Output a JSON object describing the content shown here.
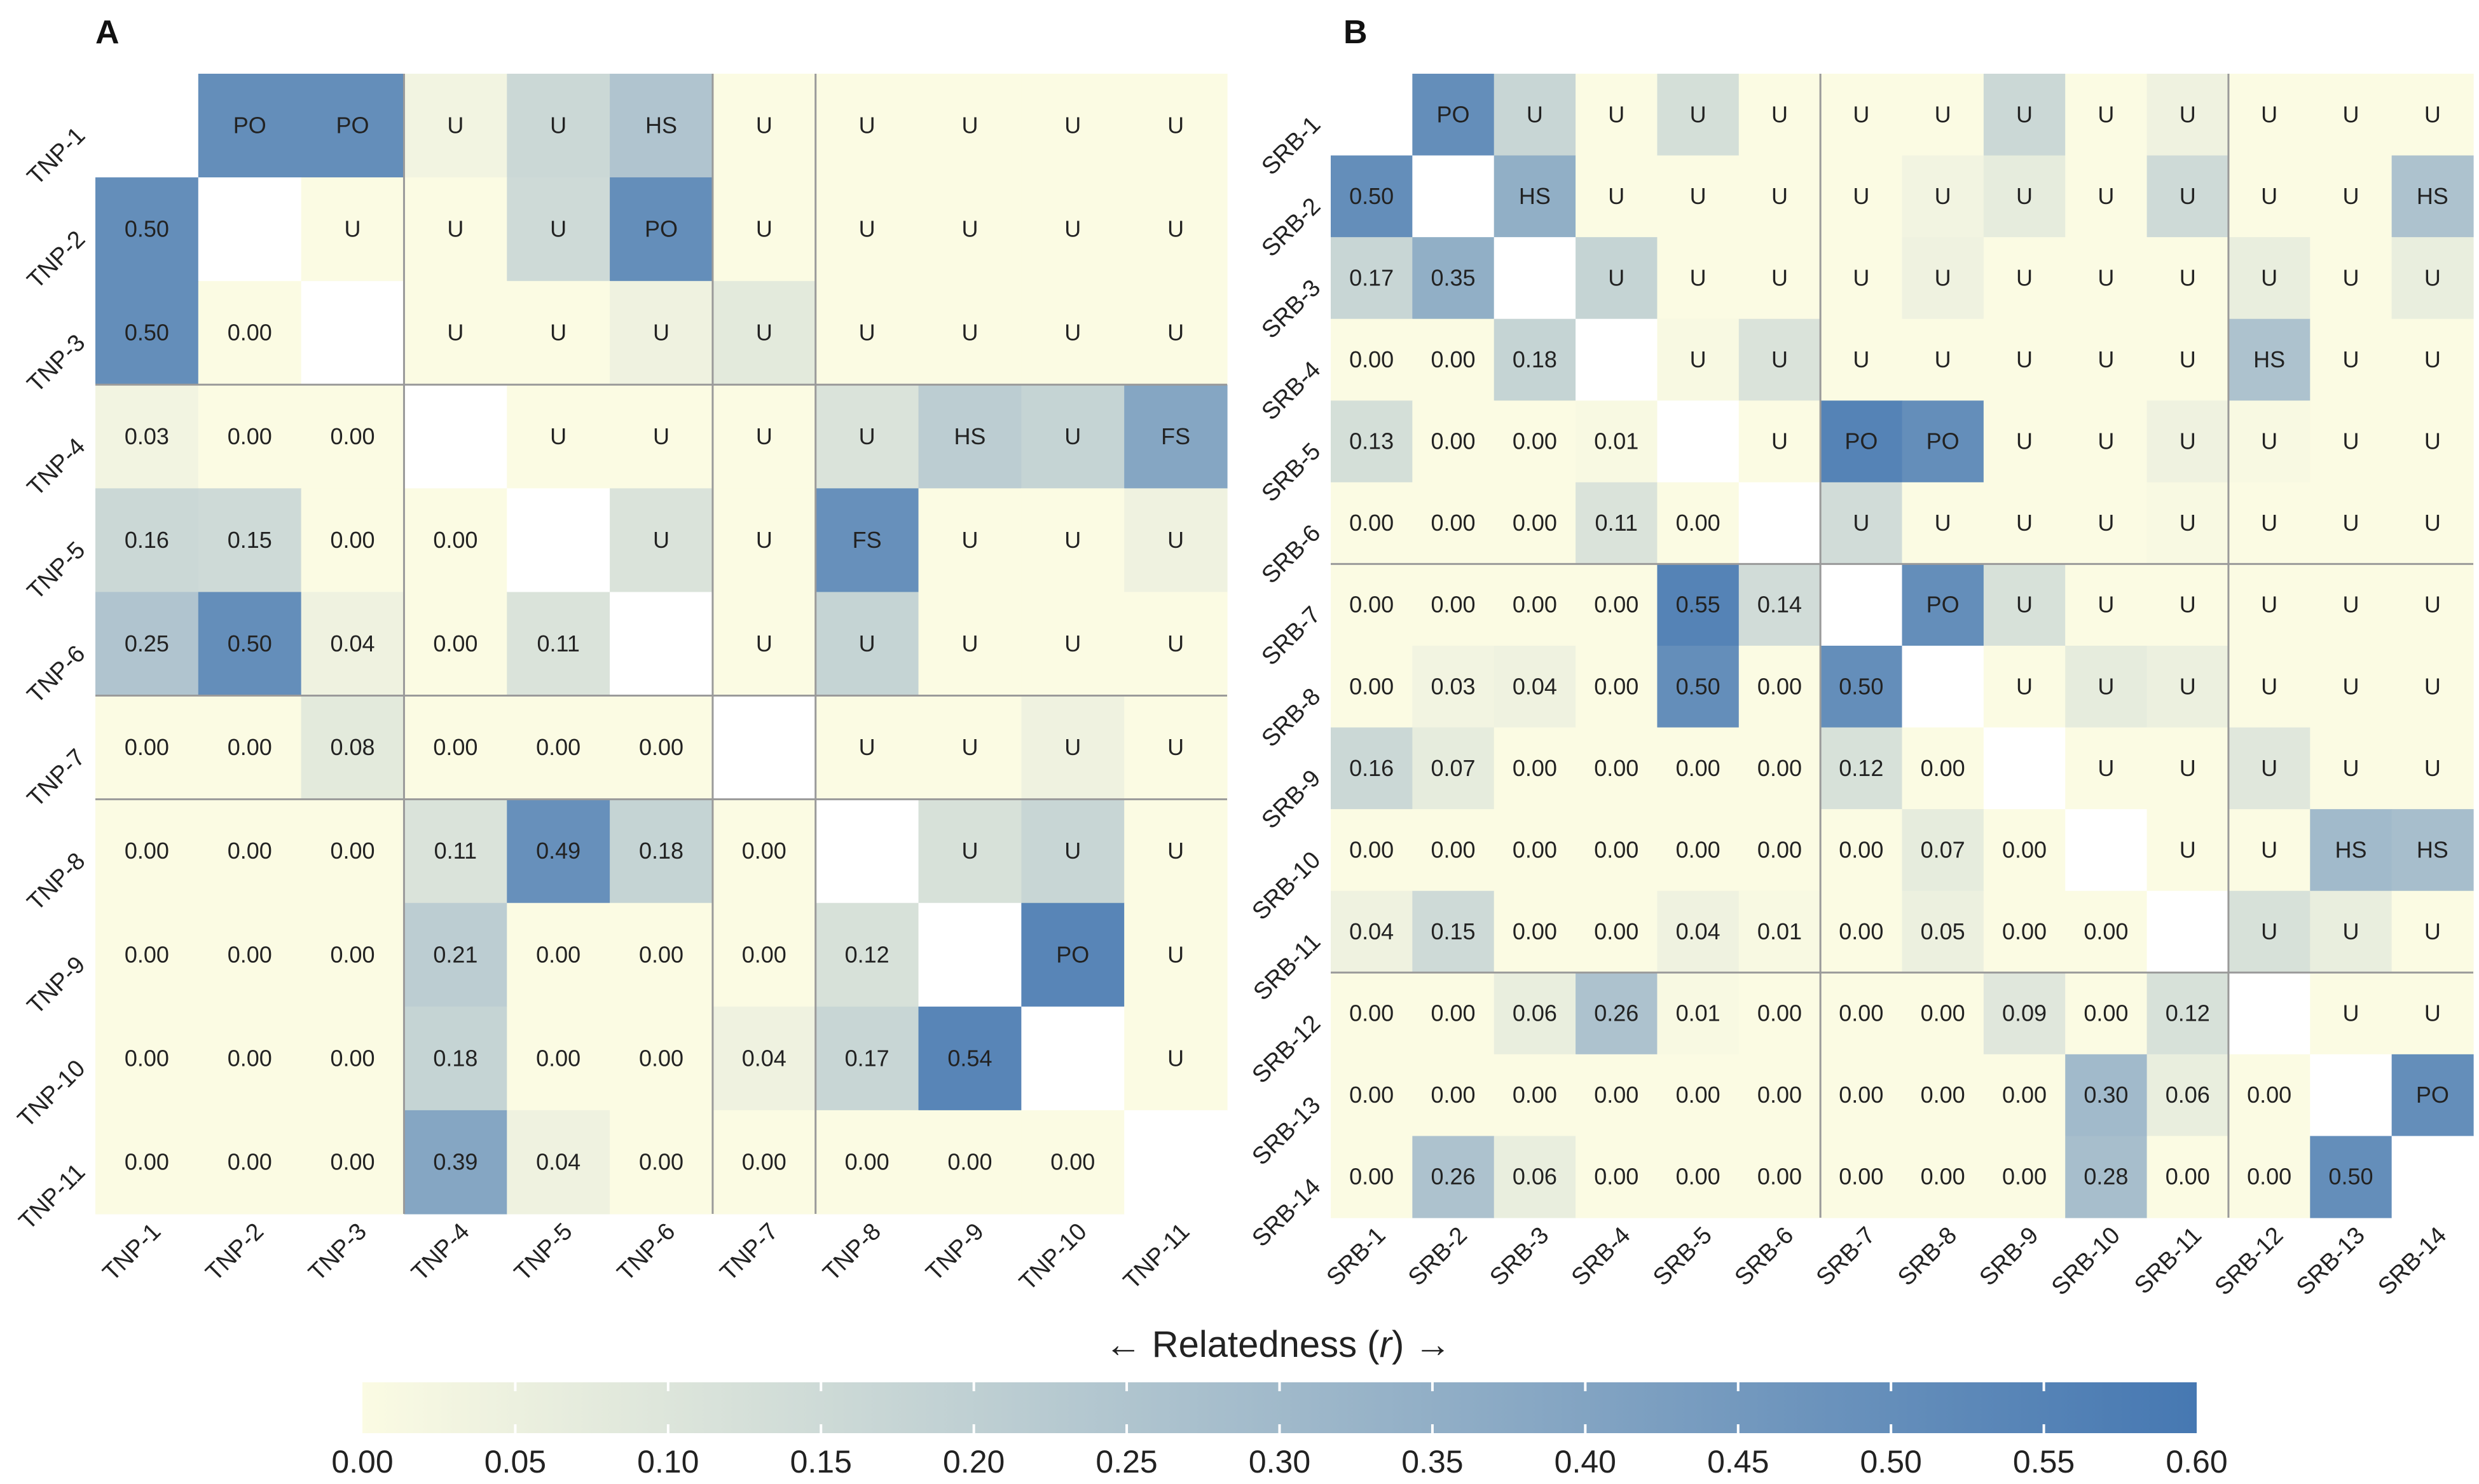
{
  "colors": {
    "low": "#fbfbe3",
    "high": "#4678b2",
    "grid": "#9a9a9a",
    "diagonal": "#ffffff"
  },
  "chart_data": [
    {
      "type": "heatmap",
      "panel": "A",
      "labels": [
        "TNP-1",
        "TNP-2",
        "TNP-3",
        "TNP-4",
        "TNP-5",
        "TNP-6",
        "TNP-7",
        "TNP-8",
        "TNP-9",
        "TNP-10",
        "TNP-11"
      ],
      "group_breaks_after": [
        3,
        6,
        7
      ],
      "lower_values": [
        [
          null
        ],
        [
          0.5
        ],
        [
          0.5,
          0.0
        ],
        [
          0.03,
          0.0,
          0.0
        ],
        [
          0.16,
          0.15,
          0.0,
          0.0
        ],
        [
          0.25,
          0.5,
          0.04,
          0.0,
          0.11
        ],
        [
          0.0,
          0.0,
          0.08,
          0.0,
          0.0,
          0.0
        ],
        [
          0.0,
          0.0,
          0.0,
          0.11,
          0.49,
          0.18,
          0.0
        ],
        [
          0.0,
          0.0,
          0.0,
          0.21,
          0.0,
          0.0,
          0.0,
          0.12
        ],
        [
          0.0,
          0.0,
          0.0,
          0.18,
          0.0,
          0.0,
          0.04,
          0.17,
          0.54
        ],
        [
          0.0,
          0.0,
          0.0,
          0.39,
          0.04,
          0.0,
          0.0,
          0.0,
          0.0,
          0.0
        ]
      ],
      "upper_labels": [
        [],
        [
          "PO"
        ],
        [
          "PO",
          "U"
        ],
        [
          "U",
          "U",
          "U"
        ],
        [
          "U",
          "U",
          "U",
          "U"
        ],
        [
          "HS",
          "PO",
          "U",
          "U",
          "U"
        ],
        [
          "U",
          "U",
          "U",
          "U",
          "U",
          "U"
        ],
        [
          "U",
          "U",
          "U",
          "U",
          "FS",
          "U",
          "U"
        ],
        [
          "U",
          "U",
          "U",
          "HS",
          "U",
          "U",
          "U",
          "U"
        ],
        [
          "U",
          "U",
          "U",
          "U",
          "U",
          "U",
          "U",
          "U",
          "PO"
        ],
        [
          "U",
          "U",
          "U",
          "FS",
          "U",
          "U",
          "U",
          "U",
          "U",
          "U"
        ]
      ],
      "upper_shade": [
        [],
        [
          0.5
        ],
        [
          0.5,
          0.0
        ],
        [
          0.03,
          0.0,
          0.0
        ],
        [
          0.16,
          0.15,
          0.0,
          0.0
        ],
        [
          0.25,
          0.5,
          0.04,
          0.0,
          0.11
        ],
        [
          0.0,
          0.0,
          0.08,
          0.0,
          0.0,
          0.0
        ],
        [
          0.0,
          0.0,
          0.0,
          0.11,
          0.49,
          0.18,
          0.0
        ],
        [
          0.0,
          0.0,
          0.0,
          0.21,
          0.0,
          0.0,
          0.0,
          0.12
        ],
        [
          0.0,
          0.0,
          0.0,
          0.18,
          0.0,
          0.0,
          0.04,
          0.17,
          0.54
        ],
        [
          0.0,
          0.0,
          0.0,
          0.39,
          0.04,
          0.0,
          0.0,
          0.0,
          0.0,
          0.0
        ]
      ]
    },
    {
      "type": "heatmap",
      "panel": "B",
      "labels": [
        "SRB-1",
        "SRB-2",
        "SRB-3",
        "SRB-4",
        "SRB-5",
        "SRB-6",
        "SRB-7",
        "SRB-8",
        "SRB-9",
        "SRB-10",
        "SRB-11",
        "SRB-12",
        "SRB-13",
        "SRB-14"
      ],
      "group_breaks_after": [
        6,
        11
      ],
      "lower_values": [
        [],
        [
          0.5
        ],
        [
          0.17,
          0.35
        ],
        [
          0.0,
          0.0,
          0.18
        ],
        [
          0.13,
          0.0,
          0.0,
          0.01
        ],
        [
          0.0,
          0.0,
          0.0,
          0.11,
          0.0
        ],
        [
          0.0,
          0.0,
          0.0,
          0.0,
          0.55,
          0.14
        ],
        [
          0.0,
          0.03,
          0.04,
          0.0,
          0.5,
          0.0,
          0.5
        ],
        [
          0.16,
          0.07,
          0.0,
          0.0,
          0.0,
          0.0,
          0.12,
          0.0
        ],
        [
          0.0,
          0.0,
          0.0,
          0.0,
          0.0,
          0.0,
          0.0,
          0.07,
          0.0
        ],
        [
          0.04,
          0.15,
          0.0,
          0.0,
          0.04,
          0.01,
          0.0,
          0.05,
          0.0,
          0.0
        ],
        [
          0.0,
          0.0,
          0.06,
          0.26,
          0.01,
          0.0,
          0.0,
          0.0,
          0.09,
          0.0,
          0.12
        ],
        [
          0.0,
          0.0,
          0.0,
          0.0,
          0.0,
          0.0,
          0.0,
          0.0,
          0.0,
          0.3,
          0.06,
          0.0
        ],
        [
          0.0,
          0.26,
          0.06,
          0.0,
          0.0,
          0.0,
          0.0,
          0.0,
          0.0,
          0.28,
          0.0,
          0.0,
          0.5
        ]
      ],
      "upper_labels": [
        [],
        [
          "PO"
        ],
        [
          "U",
          "HS"
        ],
        [
          "U",
          "U",
          "U"
        ],
        [
          "U",
          "U",
          "U",
          "U"
        ],
        [
          "U",
          "U",
          "U",
          "U",
          "U"
        ],
        [
          "U",
          "U",
          "U",
          "U",
          "PO",
          "U"
        ],
        [
          "U",
          "U",
          "U",
          "U",
          "PO",
          "U",
          "PO"
        ],
        [
          "U",
          "U",
          "U",
          "U",
          "U",
          "U",
          "U",
          "U"
        ],
        [
          "U",
          "U",
          "U",
          "U",
          "U",
          "U",
          "U",
          "U",
          "U"
        ],
        [
          "U",
          "U",
          "U",
          "U",
          "U",
          "U",
          "U",
          "U",
          "U",
          "U"
        ],
        [
          "U",
          "U",
          "U",
          "HS",
          "U",
          "U",
          "U",
          "U",
          "U",
          "U",
          "U"
        ],
        [
          "U",
          "U",
          "U",
          "U",
          "U",
          "U",
          "U",
          "U",
          "U",
          "HS",
          "U",
          "U"
        ],
        [
          "U",
          "HS",
          "U",
          "U",
          "U",
          "U",
          "U",
          "U",
          "U",
          "HS",
          "U",
          "U",
          "PO"
        ]
      ],
      "upper_shade": [
        [],
        [
          0.5
        ],
        [
          0.17,
          0.35
        ],
        [
          0.0,
          0.0,
          0.18
        ],
        [
          0.13,
          0.0,
          0.0,
          0.01
        ],
        [
          0.0,
          0.0,
          0.0,
          0.11,
          0.0
        ],
        [
          0.0,
          0.0,
          0.0,
          0.0,
          0.55,
          0.14
        ],
        [
          0.0,
          0.03,
          0.04,
          0.0,
          0.5,
          0.0,
          0.5
        ],
        [
          0.16,
          0.07,
          0.0,
          0.0,
          0.0,
          0.0,
          0.12,
          0.0
        ],
        [
          0.0,
          0.0,
          0.0,
          0.0,
          0.0,
          0.0,
          0.0,
          0.07,
          0.0
        ],
        [
          0.04,
          0.15,
          0.0,
          0.0,
          0.04,
          0.01,
          0.0,
          0.05,
          0.0,
          0.0
        ],
        [
          0.0,
          0.0,
          0.06,
          0.26,
          0.01,
          0.0,
          0.0,
          0.0,
          0.09,
          0.0,
          0.12
        ],
        [
          0.0,
          0.0,
          0.0,
          0.0,
          0.0,
          0.0,
          0.0,
          0.0,
          0.0,
          0.3,
          0.06,
          0.0
        ],
        [
          0.0,
          0.26,
          0.06,
          0.0,
          0.0,
          0.0,
          0.0,
          0.0,
          0.0,
          0.28,
          0.0,
          0.0,
          0.5
        ]
      ]
    }
  ],
  "colorbar": {
    "title_prefix": "← Relatedness (",
    "title_var": "r",
    "title_suffix": ") →",
    "range": [
      0,
      0.6
    ],
    "ticks": [
      "0.00",
      "0.05",
      "0.10",
      "0.15",
      "0.20",
      "0.25",
      "0.30",
      "0.35",
      "0.40",
      "0.45",
      "0.50",
      "0.55",
      "0.60"
    ]
  }
}
